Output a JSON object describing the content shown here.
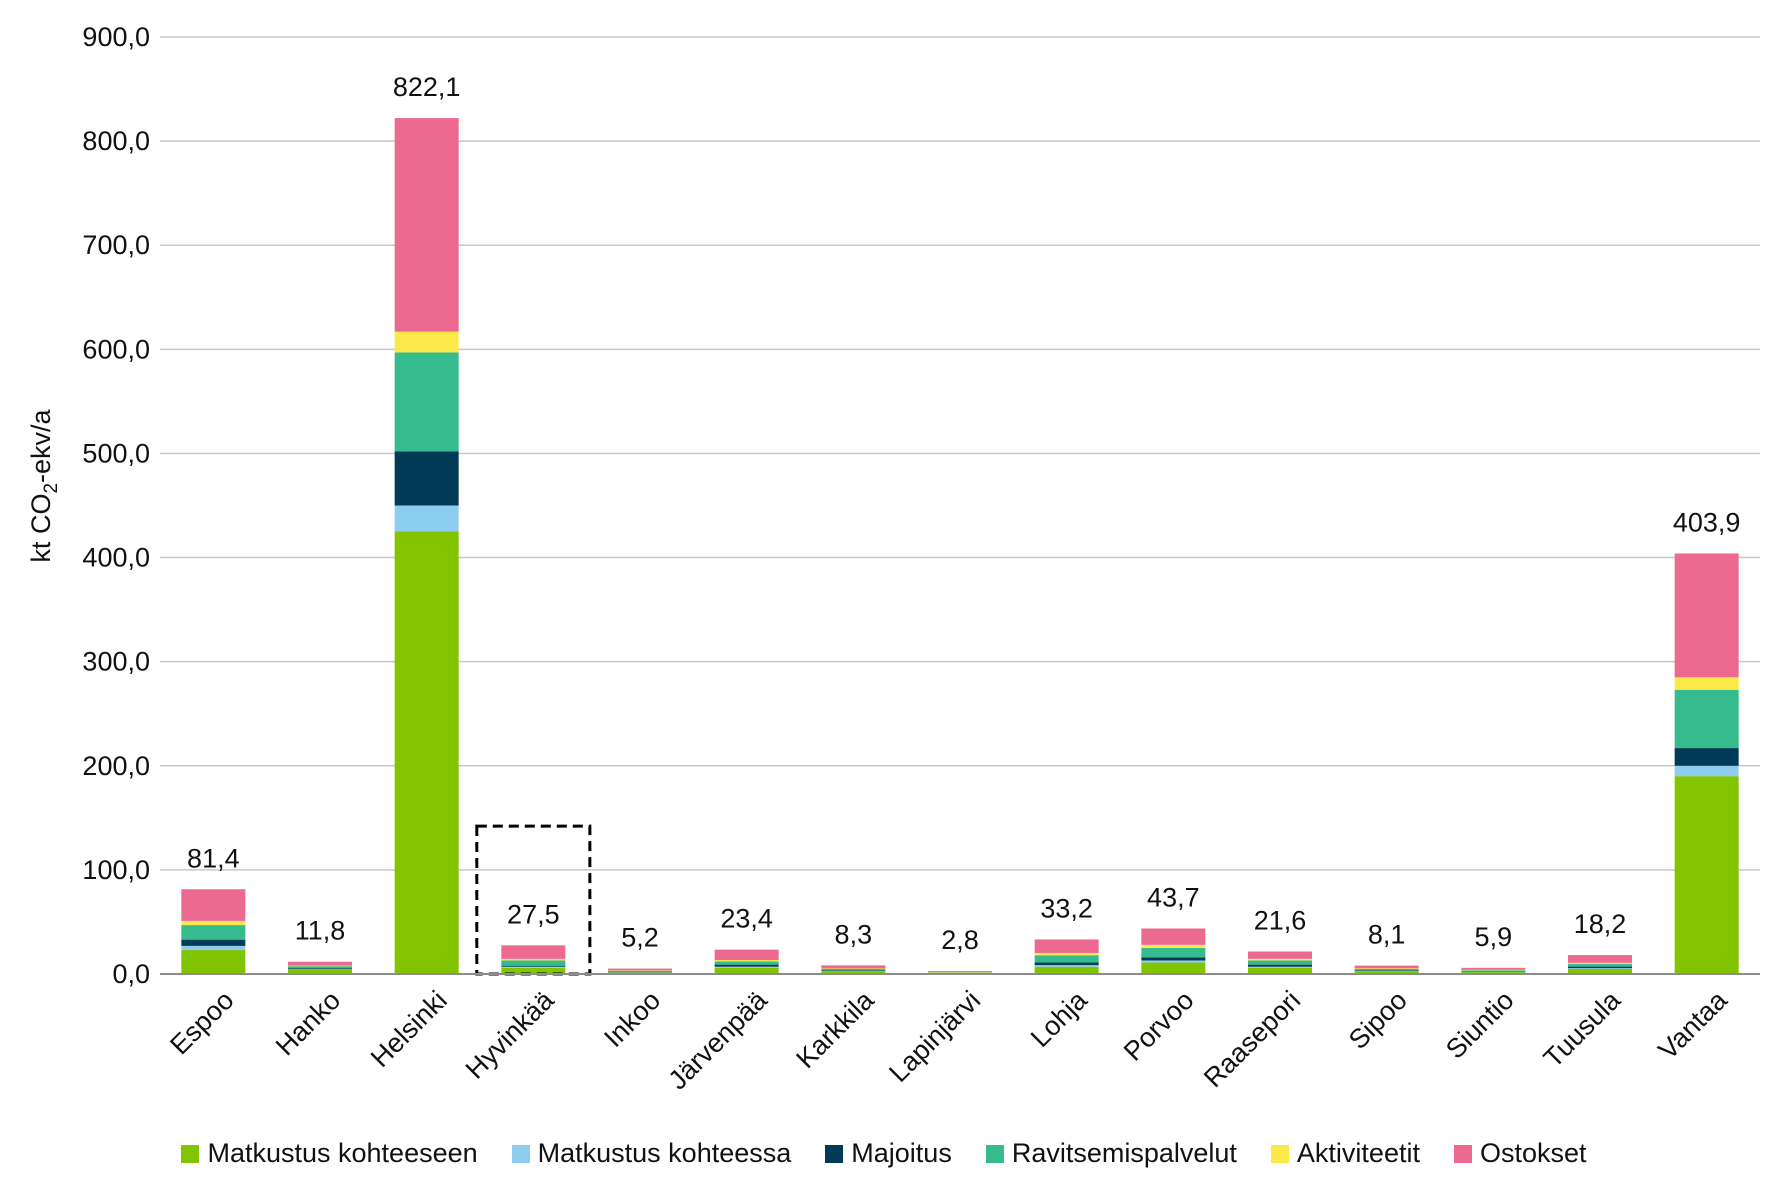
{
  "chart_data": {
    "type": "bar",
    "stacked": true,
    "ylabel_main": "kt CO",
    "ylabel_sub": "2",
    "ylabel_tail": "-ekv/a",
    "ylim": [
      0,
      900
    ],
    "yticks": [
      "0,0",
      "100,0",
      "200,0",
      "300,0",
      "400,0",
      "500,0",
      "600,0",
      "700,0",
      "800,0",
      "900,0"
    ],
    "grid": true,
    "legend_position": "bottom",
    "categories": [
      "Espoo",
      "Hanko",
      "Helsinki",
      "Hyvinkää",
      "Inkoo",
      "Järvenpää",
      "Karkkila",
      "Lapinjärvi",
      "Lohja",
      "Porvoo",
      "Raasepori",
      "Sipoo",
      "Siuntio",
      "Tuusula",
      "Vantaa"
    ],
    "totals": [
      "81,4",
      "11,8",
      "822,1",
      "27,5",
      "5,2",
      "23,4",
      "8,3",
      "2,8",
      "33,2",
      "43,7",
      "21,6",
      "8,1",
      "5,9",
      "18,2",
      "403,9"
    ],
    "highlight_category": "Hyvinkää",
    "series": [
      {
        "name": "Matkustus kohteeseen",
        "color": "#82c400",
        "values": [
          23,
          4,
          425,
          6,
          1.5,
          6,
          2.5,
          0.8,
          7,
          11,
          6,
          2.5,
          2,
          5,
          190
        ]
      },
      {
        "name": "Matkustus kohteessa",
        "color": "#8ccdf0",
        "values": [
          4,
          0.5,
          25,
          1,
          0.2,
          1,
          0.3,
          0.1,
          1.5,
          2,
          1,
          0.3,
          0.2,
          0.6,
          10
        ]
      },
      {
        "name": "Majoitus",
        "color": "#003a57",
        "values": [
          6,
          1,
          52,
          1,
          0.5,
          2,
          0.5,
          0.2,
          2.5,
          3,
          2,
          0.5,
          0.4,
          1.5,
          17
        ]
      },
      {
        "name": "Ravitsemispalvelut",
        "color": "#36bb8e",
        "values": [
          14,
          2,
          95,
          5,
          1,
          3,
          1.5,
          0.5,
          7,
          9,
          4,
          1.5,
          1,
          2.5,
          56
        ]
      },
      {
        "name": "Aktiviteetit",
        "color": "#fbe94a",
        "values": [
          4,
          0.5,
          20,
          1.5,
          0.3,
          1.4,
          0.5,
          0.2,
          2.2,
          3,
          1.6,
          0.6,
          0.5,
          1.1,
          12
        ]
      },
      {
        "name": "Ostokset",
        "color": "#ec6a8f",
        "values": [
          30.4,
          3.8,
          205.1,
          13,
          1.7,
          10,
          3,
          1,
          13,
          15.7,
          7,
          2.7,
          1.8,
          7.5,
          118.9
        ]
      }
    ]
  }
}
